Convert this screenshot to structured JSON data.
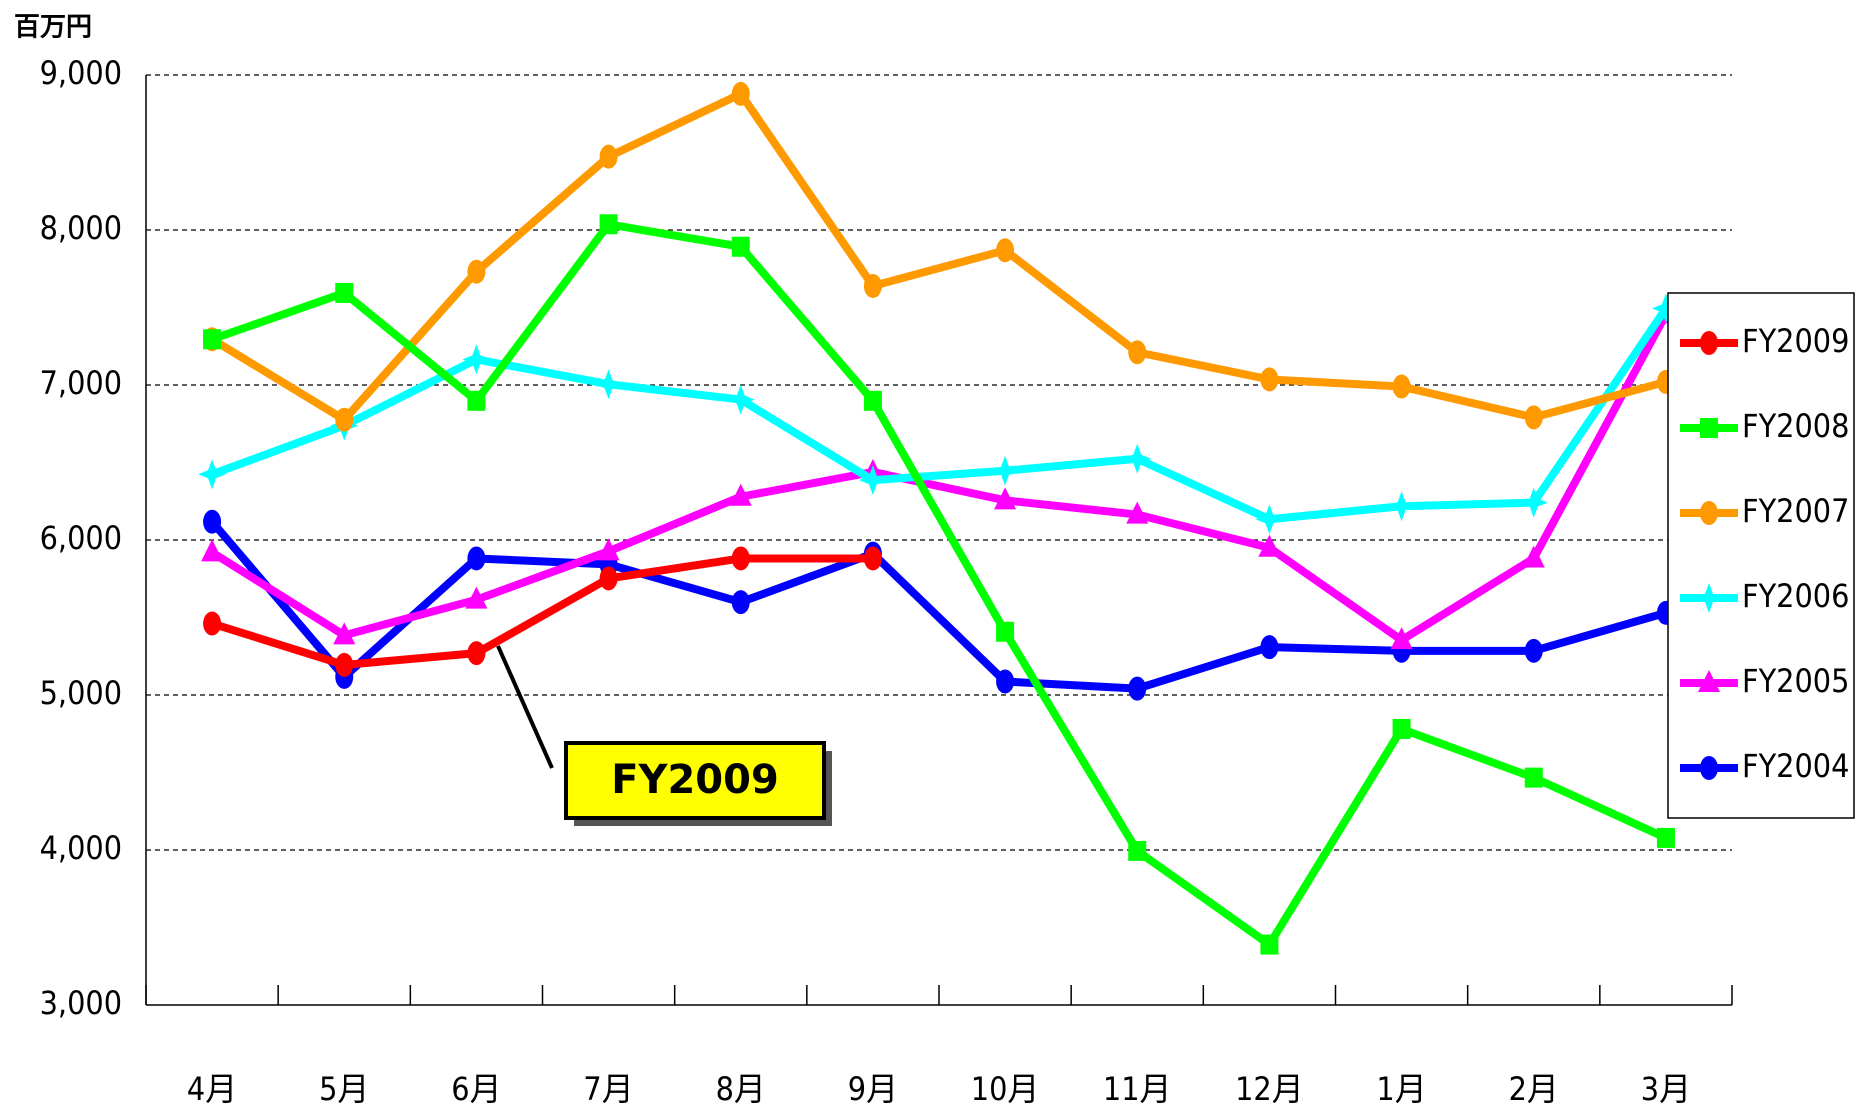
{
  "chart_data": {
    "type": "line",
    "unit_label": "百万円",
    "annotation": "FY2009",
    "categories": [
      "4月",
      "5月",
      "6月",
      "7月",
      "8月",
      "9月",
      "10月",
      "11月",
      "12月",
      "1月",
      "2月",
      "3月"
    ],
    "ylim": [
      3000,
      9000
    ],
    "yticks": [
      {
        "value": 3000,
        "label": "3,000"
      },
      {
        "value": 4000,
        "label": "4,000"
      },
      {
        "value": 5000,
        "label": "5,000"
      },
      {
        "value": 6000,
        "label": "6,000"
      },
      {
        "value": 7000,
        "label": "7,000"
      },
      {
        "value": 8000,
        "label": "8,000"
      },
      {
        "value": 9000,
        "label": "9,000"
      }
    ],
    "grid": true,
    "legend": "right",
    "series": [
      {
        "name": "FY2009",
        "color": "#ff0000",
        "marker": "circle",
        "values": [
          5461,
          5194,
          5270,
          5752,
          5881,
          5881,
          null,
          null,
          null,
          null,
          null,
          null
        ]
      },
      {
        "name": "FY2008",
        "color": "#00ff00",
        "marker": "square",
        "values": [
          7295,
          7594,
          6898,
          8037,
          7892,
          6898,
          5408,
          3994,
          3390,
          4781,
          4467,
          4078
        ]
      },
      {
        "name": "FY2007",
        "color": "#ff9900",
        "marker": "circle",
        "values": [
          7295,
          6776,
          7731,
          8473,
          8878,
          7639,
          7869,
          7211,
          7036,
          6990,
          6791,
          7020
        ]
      },
      {
        "name": "FY2006",
        "color": "#00ffff",
        "marker": "star",
        "values": [
          6424,
          6738,
          7165,
          7005,
          6906,
          6386,
          6447,
          6524,
          6134,
          6218,
          6241,
          7494
        ]
      },
      {
        "name": "FY2005",
        "color": "#ff00ff",
        "marker": "triangle",
        "values": [
          5920,
          5385,
          5615,
          5927,
          6279,
          6439,
          6256,
          6164,
          5950,
          5354,
          5881,
          7456
        ]
      },
      {
        "name": "FY2004",
        "color": "#0000ff",
        "marker": "circle",
        "values": [
          6118,
          5117,
          5881,
          5843,
          5599,
          5912,
          5087,
          5041,
          5309,
          5285,
          5285,
          5530
        ]
      }
    ]
  }
}
